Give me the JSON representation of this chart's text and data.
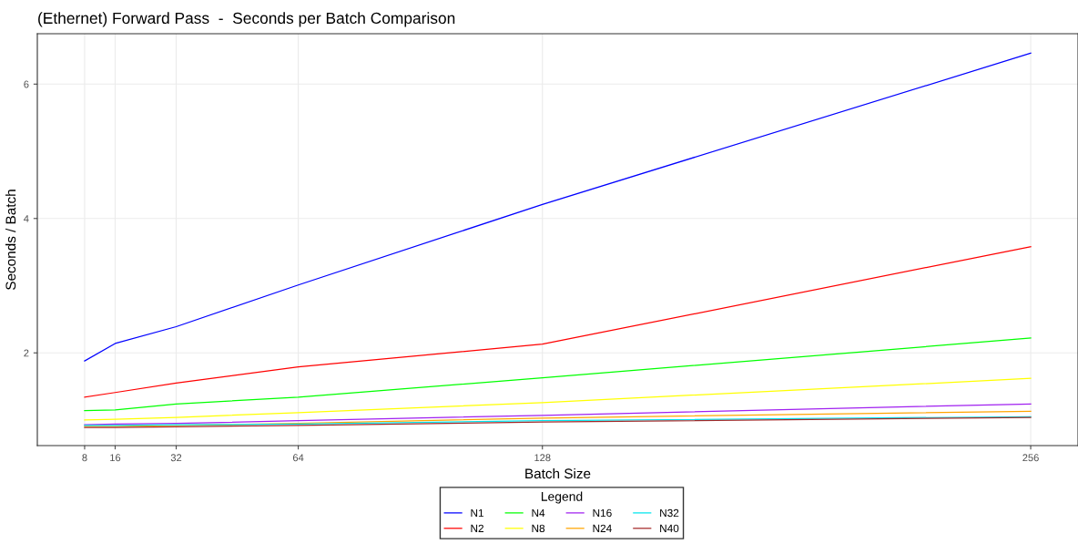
{
  "chart_data": {
    "type": "line",
    "title": "(Ethernet) Forward Pass  -  Seconds per Batch Comparison",
    "xlabel": "Batch Size",
    "ylabel": "Seconds / Batch",
    "legend_title": "Legend",
    "legend": "bottom",
    "grid": true,
    "x": [
      8,
      16,
      32,
      64,
      128,
      256
    ],
    "xlim": [
      -4.4,
      268.4
    ],
    "xticks": [
      8,
      16,
      32,
      64,
      128,
      256
    ],
    "ylim": [
      0.62,
      6.75
    ],
    "yticks": [
      2,
      4,
      6
    ],
    "series": [
      {
        "name": "N1",
        "color": "#0000ff",
        "values": [
          1.88,
          2.14,
          2.39,
          3.01,
          4.21,
          6.46
        ]
      },
      {
        "name": "N2",
        "color": "#ff0000",
        "values": [
          1.34,
          1.41,
          1.55,
          1.79,
          2.13,
          3.58
        ]
      },
      {
        "name": "N4",
        "color": "#00ff00",
        "values": [
          1.14,
          1.15,
          1.24,
          1.34,
          1.63,
          2.22
        ]
      },
      {
        "name": "N8",
        "color": "#ffff00",
        "values": [
          1.0,
          1.01,
          1.04,
          1.11,
          1.26,
          1.62
        ]
      },
      {
        "name": "N16",
        "color": "#a020f0",
        "values": [
          0.93,
          0.94,
          0.95,
          0.99,
          1.07,
          1.24
        ]
      },
      {
        "name": "N24",
        "color": "#ffa500",
        "values": [
          0.905,
          0.905,
          0.92,
          0.95,
          1.03,
          1.13
        ]
      },
      {
        "name": "N32",
        "color": "#00e5ee",
        "values": [
          0.92,
          0.92,
          0.93,
          0.94,
          0.99,
          1.05
        ]
      },
      {
        "name": "N40",
        "color": "#a52a2a",
        "values": [
          0.89,
          0.89,
          0.9,
          0.92,
          0.97,
          1.04
        ]
      }
    ]
  }
}
